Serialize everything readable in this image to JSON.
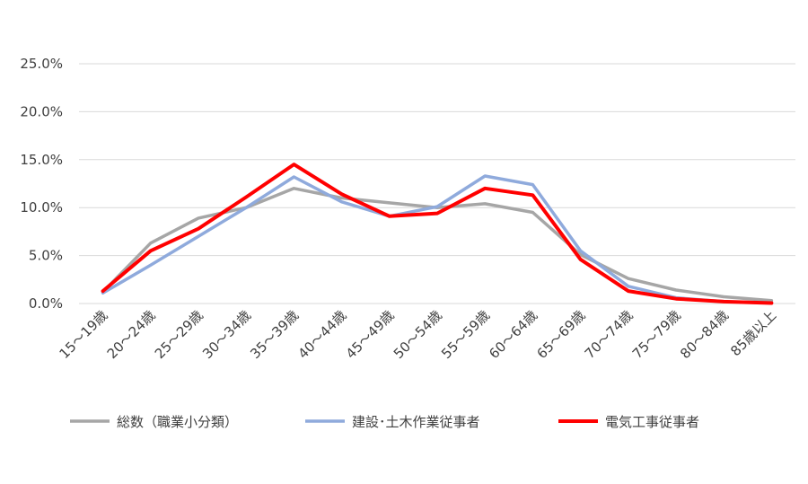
{
  "chart_data": {
    "type": "line",
    "title": "",
    "xlabel": "",
    "ylabel": "",
    "ylim": [
      0,
      25
    ],
    "y_ticks": [
      "0.0%",
      "5.0%",
      "10.0%",
      "15.0%",
      "20.0%",
      "25.0%"
    ],
    "grid": "horizontal",
    "legend_position": "bottom",
    "categories": [
      "15～19歳",
      "20～24歳",
      "25～29歳",
      "30～34歳",
      "35～39歳",
      "40～44歳",
      "45～49歳",
      "50～54歳",
      "55～59歳",
      "60～64歳",
      "65～69歳",
      "70～74歳",
      "75～79歳",
      "80～84歳",
      "85歳以上"
    ],
    "series": [
      {
        "name": "総数（職業小分類）",
        "color": "#a6a6a6",
        "values": [
          1.2,
          6.3,
          8.9,
          10.0,
          12.0,
          11.0,
          10.5,
          10.0,
          10.4,
          9.5,
          5.1,
          2.6,
          1.4,
          0.7,
          0.3
        ]
      },
      {
        "name": "建設･土木作業従事者",
        "color": "#8faadc",
        "values": [
          1.1,
          4.0,
          7.0,
          10.0,
          13.2,
          10.6,
          9.1,
          10.1,
          13.3,
          12.4,
          5.5,
          1.8,
          0.6,
          0.2,
          0.05
        ]
      },
      {
        "name": "電気工事従事者",
        "color": "#ff0000",
        "values": [
          1.3,
          5.5,
          7.8,
          11.1,
          14.5,
          11.4,
          9.1,
          9.4,
          12.0,
          11.3,
          4.6,
          1.3,
          0.5,
          0.2,
          0.05
        ]
      }
    ]
  }
}
